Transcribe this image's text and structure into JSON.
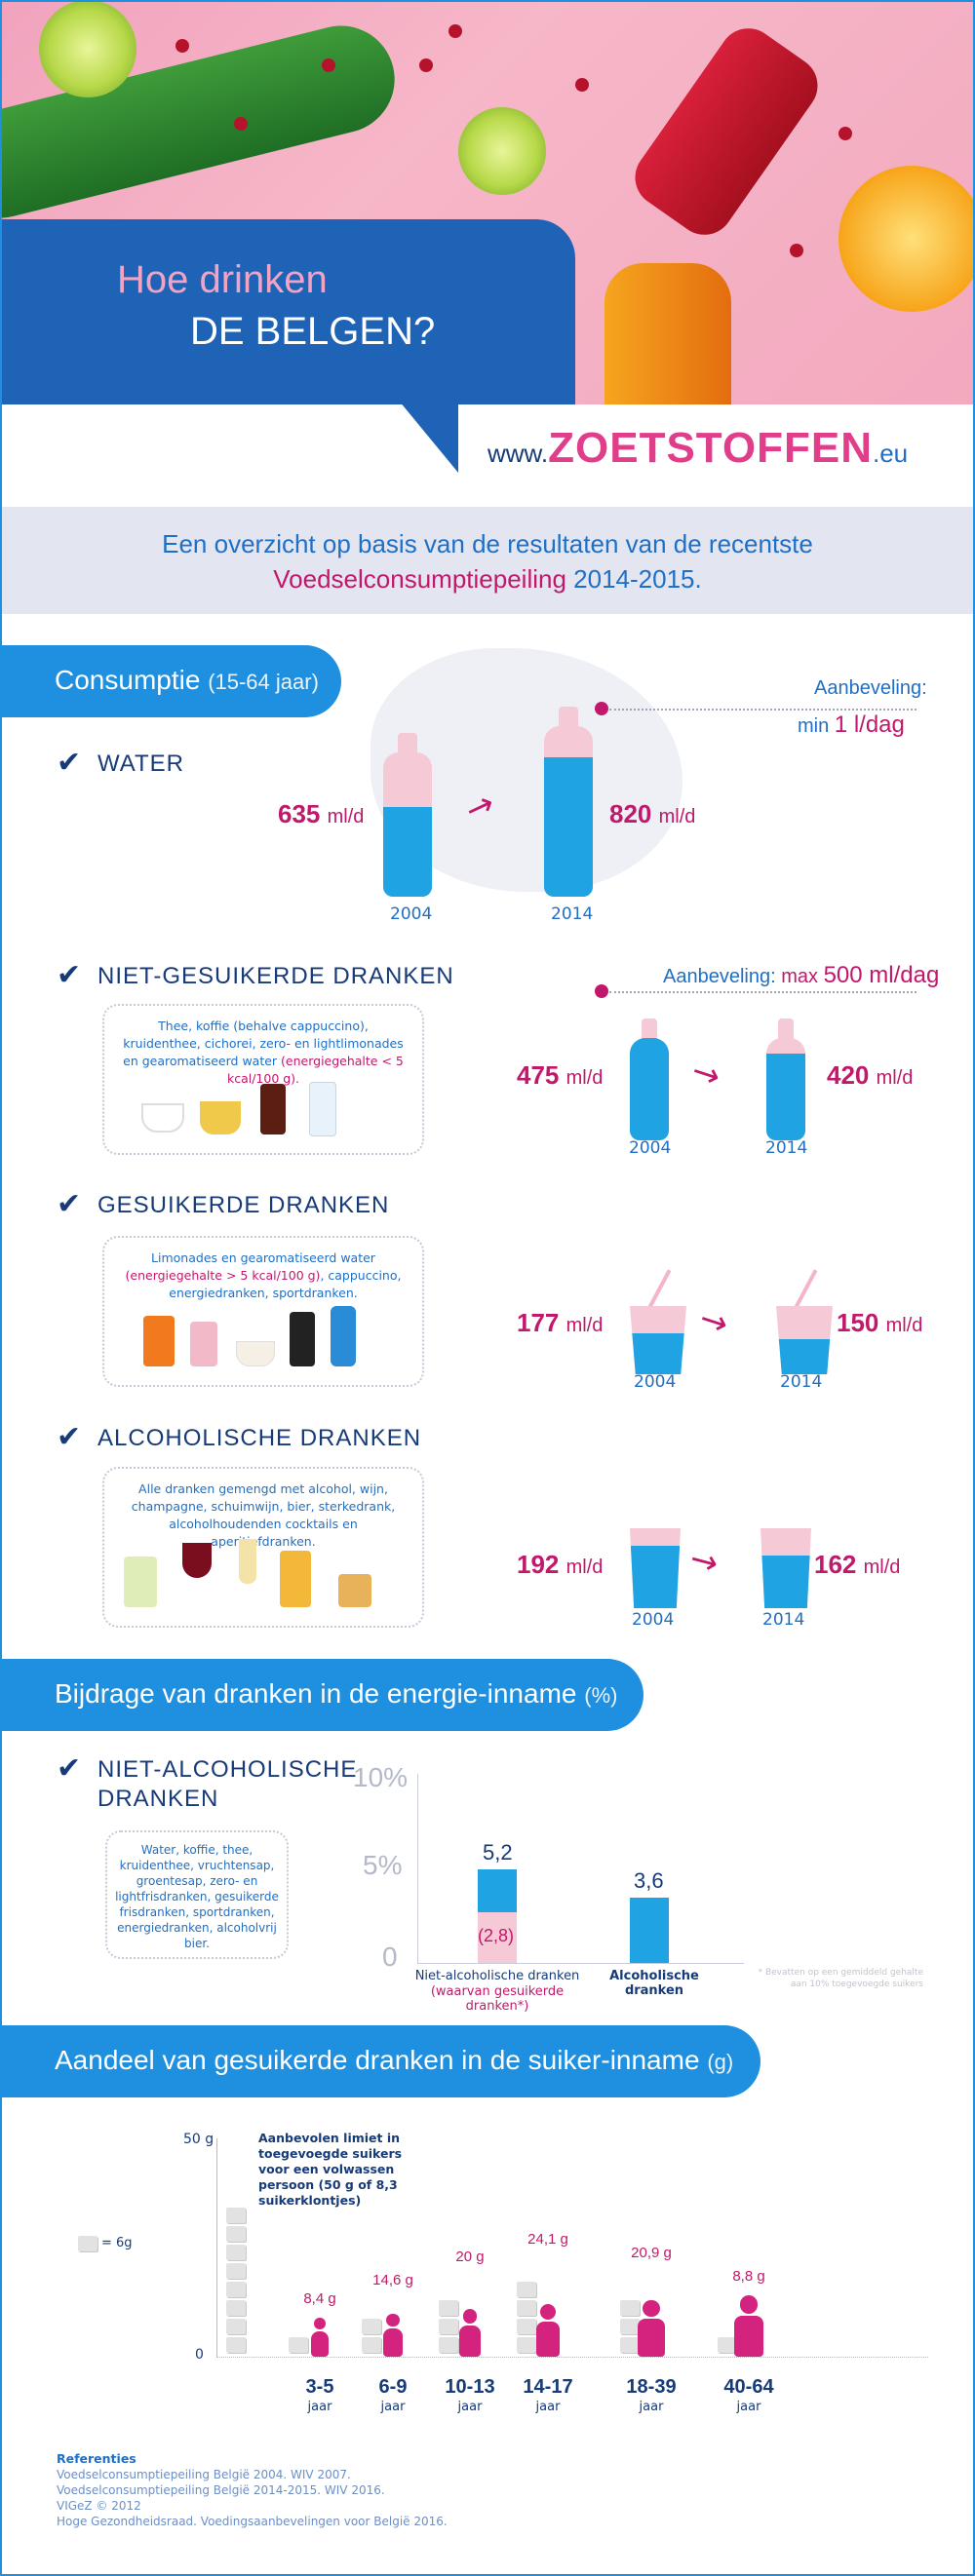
{
  "header": {
    "title_line1": "Hoe drinken",
    "title_line2": "DE BELGEN?",
    "site_prefix": "www.",
    "site_brand": "ZOETSTOFFEN",
    "site_suffix": ".eu"
  },
  "intro": {
    "line1": "Een overzicht op basis van de resultaten van de recentste",
    "highlight": "Voedselconsumptiepeiling",
    "years": " 2014-2015."
  },
  "consumption": {
    "tab_title": "Consumptie",
    "tab_sub": "(15-64 jaar)",
    "water": {
      "heading": "WATER",
      "rec_label": "Aanbeveling:",
      "rec_prefix": "min",
      "rec_value": "1 l/dag",
      "v2004": "635",
      "v2014": "820",
      "unit": "ml/d",
      "y1": "2004",
      "y2": "2014",
      "fill2004": 0.62,
      "fill2014": 0.82
    },
    "niet": {
      "heading": "NIET-GESUIKERDE DRANKEN",
      "rec_label": "Aanbeveling:",
      "rec_prefix": "max",
      "rec_value": "500 ml/dag",
      "desc": "Thee, koffie (behalve cappuccino), kruidenthee, cichorei, zero- en lightlimonades en gearomatiseerd water ",
      "desc_note": "(energiegehalte < 5 kcal/100 g).",
      "v2004": "475",
      "v2014": "420",
      "unit": "ml/d",
      "y1": "2004",
      "y2": "2014"
    },
    "gesuikerd": {
      "heading": "GESUIKERDE DRANKEN",
      "desc": "Limonades en gearomatiseerd water ",
      "desc_note": "(energiegehalte > 5 kcal/100 g)",
      "desc2": ", cappuccino, energiedranken, sportdranken.",
      "v2004": "177",
      "v2014": "150",
      "unit": "ml/d",
      "y1": "2004",
      "y2": "2014"
    },
    "alcohol": {
      "heading": "ALCOHOLISCHE DRANKEN",
      "desc": "Alle dranken gemengd met alcohol, wijn, champagne, schuimwijn, bier, sterkedrank, alcoholhoudenden cocktails en aperitiefdranken.",
      "v2004": "192",
      "v2014": "162",
      "unit": "ml/d",
      "y1": "2004",
      "y2": "2014"
    }
  },
  "energy": {
    "tab_title": "Bijdrage van dranken in de energie-inname",
    "tab_sub": "(%)",
    "heading_l1": "NIET-ALCOHOLISCHE",
    "heading_l2": "DRANKEN",
    "desc": "Water, koffie, thee, kruidenthee, vruchtensap, groentesap, zero- en lightfrisdranken, gesuikerde frisdranken, sportdranken, energiedranken, alcoholvrij bier.",
    "footnote": "* Bevatten op een gemiddeld gehalte aan 10% toegevoegde suikers",
    "chart_data": {
      "type": "bar",
      "categories": [
        "Niet-alcoholische dranken",
        "Alcoholische dranken"
      ],
      "category_sub": "(waarvan gesuikerde dranken*)",
      "values": [
        5.2,
        3.6
      ],
      "sub_value": 2.8,
      "labels": [
        "5,2",
        "3,6"
      ],
      "sub_label": "(2,8)",
      "yticks": [
        "10%",
        "5%",
        "0"
      ],
      "ylim": [
        0,
        10
      ]
    }
  },
  "sugar": {
    "tab_title": "Aandeel van gesuikerde dranken in de suiker-inname",
    "tab_sub": "(g)",
    "ytop": "50 g",
    "ybottom": "0",
    "legend_value": "= 6g",
    "limit_text": "Aanbevolen limiet in toegevoegde suikers voor een volwassen persoon (50 g of 8,3 suikerklontjes)",
    "chart_data": {
      "type": "bar",
      "categories": [
        "3-5",
        "6-9",
        "10-13",
        "14-17",
        "18-39",
        "40-64"
      ],
      "values": [
        8.4,
        14.6,
        20,
        24.1,
        20.9,
        8.8
      ],
      "labels": [
        "8,4 g",
        "14,6 g",
        "20 g",
        "24,1 g",
        "20,9 g",
        "8,8 g"
      ],
      "unit_word": "jaar",
      "limit": 50,
      "ylim": [
        0,
        50
      ]
    }
  },
  "references": {
    "title": "Referenties",
    "lines": [
      "Voedselconsumptiepeiling België 2004. WIV 2007.",
      "Voedselconsumptiepeiling België 2014-2015. WIV 2016.",
      "VIGeZ © 2012",
      "Hoge Gezondheidsraad. Voedingsaanbevelingen voor België 2016."
    ]
  },
  "colors": {
    "pink": "#c2186b",
    "blue": "#1fa3e3",
    "navy": "#173b78",
    "tab": "#1f8fe0"
  }
}
